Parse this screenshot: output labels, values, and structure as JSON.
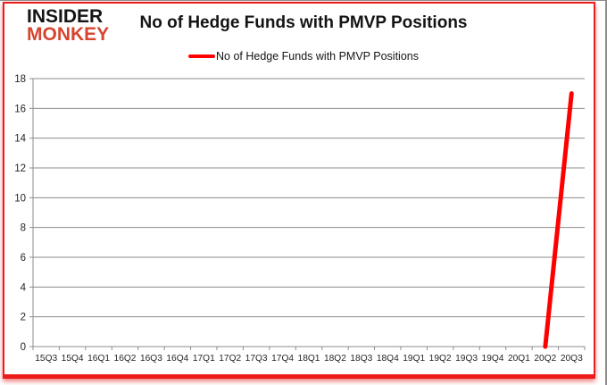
{
  "logo": {
    "line1": "INSIDER",
    "line2": "MONKEY"
  },
  "header": {
    "title": "No of Hedge Funds with PMVP Positions"
  },
  "legend": {
    "label": "No of Hedge Funds with PMVP Positions"
  },
  "colors": {
    "logo_black": "#141414",
    "logo_red": "#d6452f",
    "line_red": "#ff0000",
    "grid_gray": "#8c8c8c",
    "axis_text": "#262626",
    "frame_red": "#ee1b1b"
  },
  "chart_data": {
    "type": "line",
    "title": "No of Hedge Funds with PMVP Positions",
    "categories": [
      "15Q3",
      "15Q4",
      "16Q1",
      "16Q2",
      "16Q3",
      "16Q4",
      "17Q1",
      "17Q2",
      "17Q3",
      "17Q4",
      "18Q1",
      "18Q2",
      "18Q3",
      "18Q4",
      "19Q1",
      "19Q2",
      "19Q3",
      "19Q4",
      "20Q1",
      "20Q2",
      "20Q3"
    ],
    "series": [
      {
        "name": "No of Hedge Funds with PMVP Positions",
        "color": "#ff0000",
        "values": [
          null,
          null,
          null,
          null,
          null,
          null,
          null,
          null,
          null,
          null,
          null,
          null,
          null,
          null,
          null,
          null,
          null,
          null,
          null,
          0,
          17
        ]
      }
    ],
    "xlabel": "",
    "ylabel": "",
    "ylim": [
      0,
      18
    ],
    "ytick_step": 2,
    "grid": true,
    "legend_position": "top-center"
  }
}
